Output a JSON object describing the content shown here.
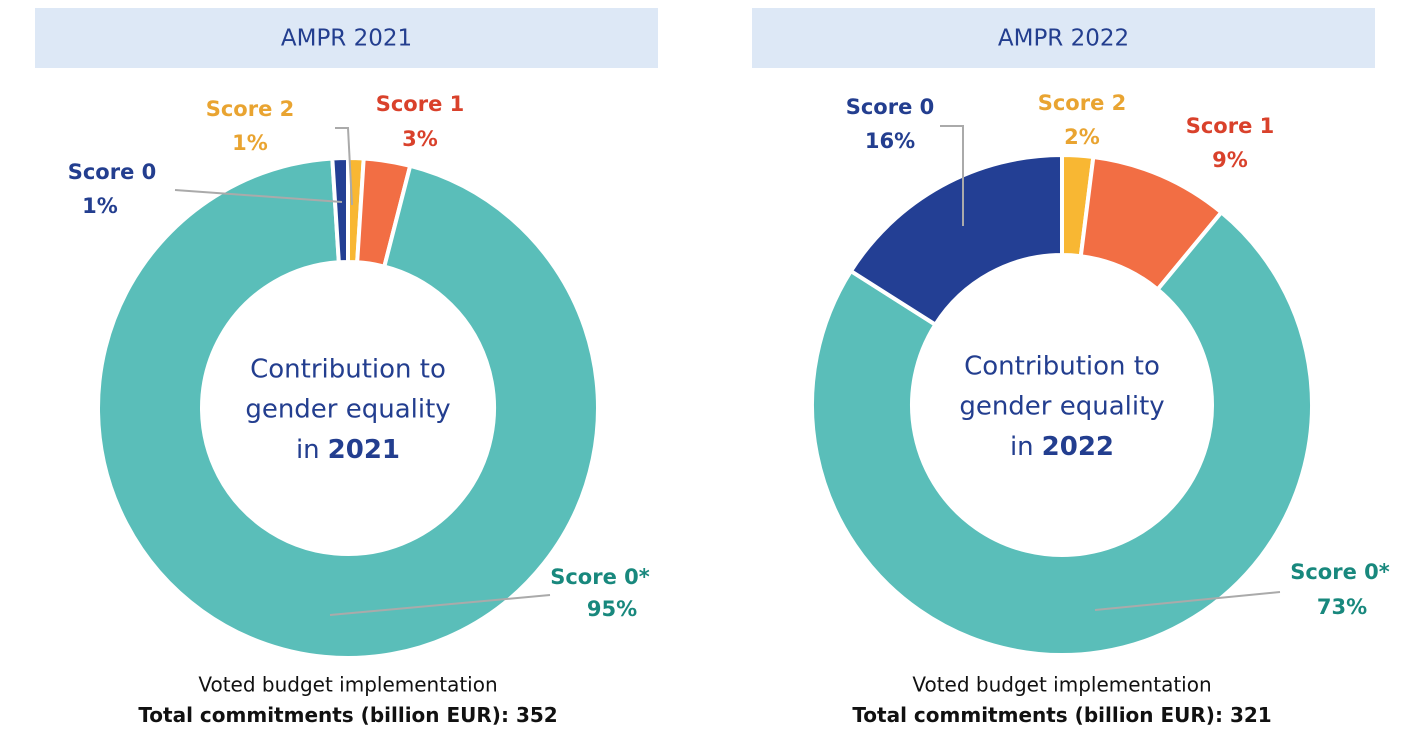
{
  "chart_data": [
    {
      "type": "pie",
      "title": "AMPR 2021",
      "categories": [
        "Score 2",
        "Score 1",
        "Score 0*",
        "Score 0"
      ],
      "values": [
        1,
        3,
        95,
        1
      ],
      "value_labels": [
        "1%",
        "3%",
        "95%",
        "1%"
      ],
      "colors": [
        "#f8b733",
        "#f26e44",
        "#5abeb9",
        "#233f94"
      ],
      "label_colors": [
        "#e9a431",
        "#d9412b",
        "#18887d",
        "#233e8f"
      ],
      "center_lines": [
        "Contribution to",
        "gender equality"
      ],
      "center_prefix": "in",
      "center_year": "2021",
      "footer": "Voted budget implementation",
      "total_label": "Total commitments (billion EUR):",
      "total": 352
    },
    {
      "type": "pie",
      "title": "AMPR 2022",
      "categories": [
        "Score 2",
        "Score 1",
        "Score 0*",
        "Score 0"
      ],
      "values": [
        2,
        9,
        73,
        16
      ],
      "value_labels": [
        "2%",
        "9%",
        "73%",
        "16%"
      ],
      "colors": [
        "#f8b733",
        "#f26e44",
        "#5abeb9",
        "#233f94"
      ],
      "label_colors": [
        "#e9a431",
        "#d9412b",
        "#18887d",
        "#233e8f"
      ],
      "center_lines": [
        "Contribution to",
        "gender equality"
      ],
      "center_prefix": "in",
      "center_year": "2022",
      "footer": "Voted budget implementation",
      "total_label": "Total commitments (billion EUR):",
      "total": 321
    }
  ]
}
